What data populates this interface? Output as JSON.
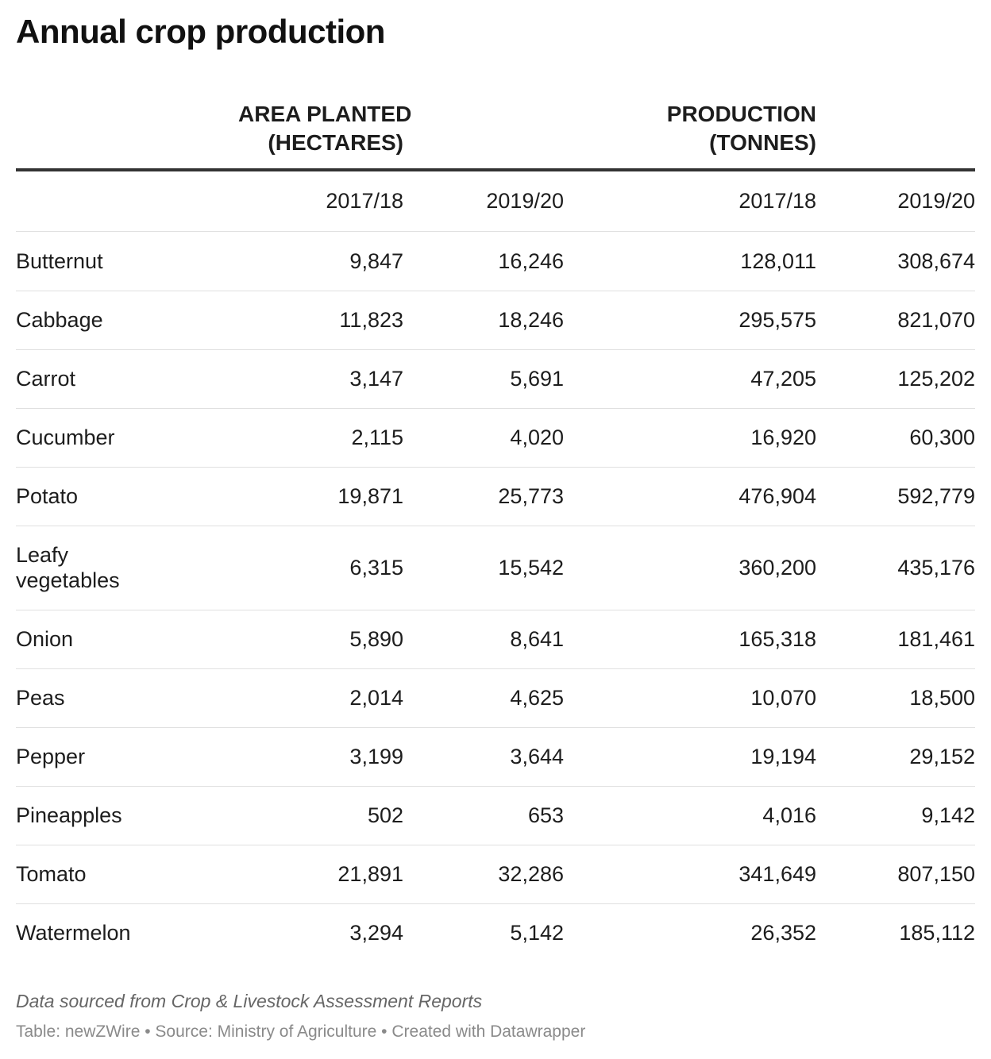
{
  "chart_data": {
    "type": "table",
    "title": "Annual crop production",
    "column_groups": [
      {
        "label_lines": [
          "AREA PLANTED",
          "(HECTARES)"
        ],
        "columns": [
          "2017/18",
          "2019/20"
        ]
      },
      {
        "label_lines": [
          "PRODUCTION",
          "(TONNES)"
        ],
        "columns": [
          "2017/18",
          "2019/20"
        ]
      }
    ],
    "rows": [
      {
        "crop": "Butternut",
        "values": [
          "9,847",
          "16,246",
          "128,011",
          "308,674"
        ]
      },
      {
        "crop": "Cabbage",
        "values": [
          "11,823",
          "18,246",
          "295,575",
          "821,070"
        ]
      },
      {
        "crop": "Carrot",
        "values": [
          "3,147",
          "5,691",
          "47,205",
          "125,202"
        ]
      },
      {
        "crop": "Cucumber",
        "values": [
          "2,115",
          "4,020",
          "16,920",
          "60,300"
        ]
      },
      {
        "crop": "Potato",
        "values": [
          "19,871",
          "25,773",
          "476,904",
          "592,779"
        ]
      },
      {
        "crop": "Leafy vegetables",
        "values": [
          "6,315",
          "15,542",
          "360,200",
          "435,176"
        ]
      },
      {
        "crop": "Onion",
        "values": [
          "5,890",
          "8,641",
          "165,318",
          "181,461"
        ]
      },
      {
        "crop": "Peas",
        "values": [
          "2,014",
          "4,625",
          "10,070",
          "18,500"
        ]
      },
      {
        "crop": "Pepper",
        "values": [
          "3,199",
          "3,644",
          "19,194",
          "29,152"
        ]
      },
      {
        "crop": "Pineapples",
        "values": [
          "502",
          "653",
          "4,016",
          "9,142"
        ]
      },
      {
        "crop": "Tomato",
        "values": [
          "21,891",
          "32,286",
          "341,649",
          "807,150"
        ]
      },
      {
        "crop": "Watermelon",
        "values": [
          "3,294",
          "5,142",
          "26,352",
          "185,112"
        ]
      }
    ],
    "notes": "Data sourced from Crop & Livestock Assessment Reports",
    "footer": "Table: newZWire • Source: Ministry of Agriculture • Created with Datawrapper"
  }
}
